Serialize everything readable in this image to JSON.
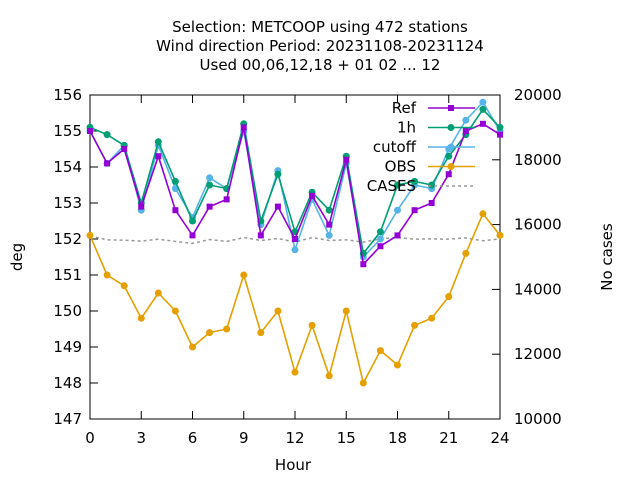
{
  "chart_data": {
    "type": "line",
    "title_lines": [
      "Selection: METCOOP using   472 stations",
      "Wind direction   Period: 20231108-20231124",
      "Used  00,06,12,18 + 01 02 ... 12"
    ],
    "xlabel": "Hour",
    "ylabel": "deg",
    "y2label": "No cases",
    "xlim": [
      0,
      24
    ],
    "ylim": [
      147,
      156
    ],
    "y2lim": [
      10000,
      20000
    ],
    "xticks": [
      "0",
      "3",
      "6",
      "9",
      "12",
      "15",
      "18",
      "21",
      "24"
    ],
    "yticks": [
      "147",
      "148",
      "149",
      "150",
      "151",
      "152",
      "153",
      "154",
      "155",
      "156"
    ],
    "y2ticks": [
      "10000",
      "12000",
      "14000",
      "16000",
      "18000",
      "20000"
    ],
    "legend_position": "top-right",
    "grid": false,
    "x": [
      0,
      1,
      2,
      3,
      4,
      5,
      6,
      7,
      8,
      9,
      10,
      11,
      12,
      13,
      14,
      15,
      16,
      17,
      18,
      19,
      20,
      21,
      22,
      23,
      24
    ],
    "series": [
      {
        "name": "Ref",
        "color": "#9400d3",
        "marker": "square",
        "axis": "y",
        "values": [
          155.0,
          154.1,
          154.5,
          152.9,
          154.3,
          152.8,
          152.1,
          152.9,
          153.1,
          155.1,
          152.1,
          152.9,
          152.0,
          153.2,
          152.4,
          154.2,
          151.3,
          151.8,
          152.1,
          152.8,
          153.0,
          153.8,
          155.0,
          155.2,
          154.9
        ]
      },
      {
        "name": "1h",
        "color": "#009e73",
        "marker": "circle",
        "axis": "y",
        "values": [
          155.1,
          154.9,
          154.6,
          153.0,
          154.7,
          153.6,
          152.5,
          153.5,
          153.4,
          155.2,
          152.5,
          153.8,
          152.2,
          153.3,
          152.8,
          154.3,
          151.6,
          152.2,
          153.5,
          153.6,
          153.5,
          154.3,
          154.9,
          155.6,
          155.1
        ]
      },
      {
        "name": "cutoff",
        "color": "#56b4e9",
        "marker": "circle",
        "axis": "y",
        "values": [
          155.0,
          154.1,
          154.6,
          152.8,
          154.6,
          153.4,
          152.6,
          153.7,
          153.4,
          155.0,
          152.4,
          153.9,
          151.7,
          153.1,
          152.1,
          154.1,
          151.5,
          152.0,
          152.8,
          153.5,
          153.4,
          154.5,
          155.3,
          155.8,
          155.0
        ]
      },
      {
        "name": "OBS",
        "color": "#e69f00",
        "marker": "circle",
        "axis": "y",
        "values": [
          152.1,
          151.0,
          150.7,
          149.8,
          150.5,
          150.0,
          149.0,
          149.4,
          149.5,
          151.0,
          149.4,
          150.0,
          148.3,
          149.6,
          148.2,
          150.0,
          148.0,
          148.9,
          148.5,
          149.6,
          149.8,
          150.4,
          151.6,
          152.7,
          152.1
        ]
      },
      {
        "name": "CASES",
        "color": "#999999",
        "marker": "none",
        "dash": true,
        "axis": "y2",
        "values": [
          15650,
          15530,
          15520,
          15490,
          15550,
          15480,
          15420,
          15540,
          15480,
          15600,
          15510,
          15570,
          15460,
          15600,
          15510,
          15530,
          15460,
          15560,
          15600,
          15550,
          15560,
          15550,
          15590,
          15500,
          15560
        ]
      }
    ]
  }
}
